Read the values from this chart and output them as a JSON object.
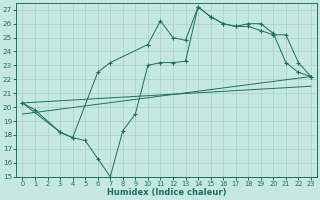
{
  "xlabel": "Humidex (Indice chaleur)",
  "bg_color": "#c5e8e0",
  "grid_color": "#a8cfc8",
  "line_color": "#1a7060",
  "xlim": [
    -0.5,
    23.5
  ],
  "ylim": [
    15,
    27.5
  ],
  "yticks": [
    15,
    16,
    17,
    18,
    19,
    20,
    21,
    22,
    23,
    24,
    25,
    26,
    27
  ],
  "xticks": [
    0,
    1,
    2,
    3,
    4,
    5,
    6,
    7,
    8,
    9,
    10,
    11,
    12,
    13,
    14,
    15,
    16,
    17,
    18,
    19,
    20,
    21,
    22,
    23
  ],
  "series1_x": [
    0,
    1,
    3,
    4,
    5,
    6,
    7,
    8,
    9,
    10,
    11,
    12,
    13,
    14,
    15,
    16,
    17,
    18,
    19,
    20,
    21,
    22,
    23
  ],
  "series1_y": [
    20.3,
    19.8,
    18.2,
    17.8,
    17.6,
    16.3,
    15.0,
    18.3,
    19.5,
    23.0,
    23.2,
    23.2,
    23.3,
    27.2,
    26.5,
    26.0,
    25.8,
    26.0,
    26.0,
    25.3,
    23.2,
    22.5,
    22.2
  ],
  "series2_x": [
    0,
    3,
    4,
    6,
    7,
    10,
    11,
    12,
    13,
    14,
    15,
    16,
    17,
    18,
    19,
    20,
    21,
    22,
    23
  ],
  "series2_y": [
    20.3,
    18.2,
    17.8,
    22.5,
    23.2,
    24.5,
    26.2,
    25.0,
    24.8,
    27.2,
    26.5,
    26.0,
    25.8,
    25.8,
    25.5,
    25.2,
    25.2,
    23.2,
    22.2
  ],
  "line1_x": [
    0,
    23
  ],
  "line1_y": [
    19.5,
    22.2
  ],
  "line2_x": [
    0,
    23
  ],
  "line2_y": [
    20.3,
    21.5
  ]
}
